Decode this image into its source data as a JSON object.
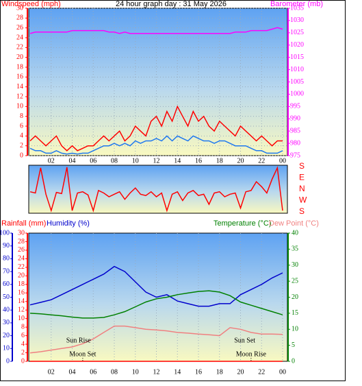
{
  "chart_data": [
    {
      "type": "line",
      "title": "24 hour graph day : 31 May 2026",
      "ylabel": "Windspeed (mph)",
      "y2label": "Barometer (mb)",
      "x": [
        0,
        0.5,
        1,
        1.5,
        2,
        2.5,
        3,
        3.5,
        4,
        4.5,
        5,
        5.5,
        6,
        6.5,
        7,
        7.5,
        8,
        8.5,
        9,
        9.5,
        10,
        10.5,
        11,
        11.5,
        12,
        12.5,
        13,
        13.5,
        14,
        14.5,
        15,
        15.5,
        16,
        16.5,
        17,
        17.5,
        18,
        18.5,
        19,
        19.5,
        20,
        20.5,
        21,
        21.5,
        22,
        22.5,
        23,
        23.5,
        24
      ],
      "xlim": [
        0,
        24
      ],
      "xticks": [
        {
          "value": 2,
          "label": "02"
        },
        {
          "value": 4,
          "label": "04"
        },
        {
          "value": 6,
          "label": "06"
        },
        {
          "value": 8,
          "label": "08"
        },
        10,
        12,
        14,
        16,
        18,
        20,
        22,
        {
          "value": 24,
          "label": "00"
        }
      ],
      "ylim": [
        0,
        30
      ],
      "yticks": [
        0,
        2,
        4,
        6,
        8,
        10,
        12,
        14,
        16,
        18,
        20,
        22,
        24,
        26,
        28,
        30
      ],
      "y2lim": [
        975,
        1035
      ],
      "y2ticks": [
        975,
        980,
        985,
        990,
        995,
        1000,
        1005,
        1010,
        1015,
        1020,
        1025,
        1030,
        1035
      ],
      "grid": true,
      "series": [
        {
          "color": "#ff0000",
          "values": [
            3,
            4,
            3,
            2,
            3,
            4,
            2,
            1,
            2,
            1,
            1.5,
            2,
            2,
            3,
            4,
            3,
            4,
            5,
            3,
            4,
            6,
            5,
            4,
            7,
            8,
            6,
            9,
            7,
            10,
            8,
            6,
            9,
            7,
            8,
            6,
            5,
            7,
            6,
            5,
            4,
            6,
            5,
            4,
            3,
            4,
            3,
            2,
            3,
            3
          ]
        },
        {
          "color": "#1e78f0",
          "values": [
            1.5,
            1,
            1,
            0.5,
            0.5,
            1,
            0.5,
            0.3,
            0.5,
            0.3,
            0.5,
            0.5,
            1,
            1.5,
            2,
            2,
            2.5,
            2,
            2.5,
            2,
            3,
            2.5,
            3,
            3,
            3.5,
            3,
            4,
            3,
            4,
            3.5,
            3,
            4,
            3.5,
            3,
            3,
            2.5,
            3,
            3,
            2.5,
            2,
            2,
            2,
            1.5,
            1,
            1,
            0.5,
            0.5,
            0.5,
            1
          ]
        },
        {
          "color": "#ff00ff",
          "axis": "y2",
          "values": [
            1024.7,
            1025.3,
            1025.3,
            1025.3,
            1025.3,
            1025.3,
            1025.3,
            1025.3,
            1025.9,
            1025.9,
            1025.9,
            1025.9,
            1025.9,
            1025.9,
            1025.9,
            1025.3,
            1025.3,
            1024.7,
            1025.3,
            1024.7,
            1024.7,
            1024.7,
            1024.7,
            1024.7,
            1024.7,
            1024.7,
            1024.7,
            1024.7,
            1024.7,
            1024.7,
            1024.7,
            1024.7,
            1024.7,
            1024.7,
            1024.7,
            1024.7,
            1024.7,
            1024.7,
            1024.7,
            1025.3,
            1025.3,
            1025.3,
            1025.9,
            1025.9,
            1025.9,
            1025.9,
            1026.5,
            1027.1,
            1026.5
          ]
        }
      ]
    },
    {
      "type": "line",
      "x": [
        0,
        0.5,
        1,
        1.5,
        2,
        2.5,
        3,
        3.5,
        4,
        4.5,
        5,
        5.5,
        6,
        6.5,
        7,
        7.5,
        8,
        8.5,
        9,
        9.5,
        10,
        10.5,
        11,
        11.5,
        12,
        12.5,
        13,
        13.5,
        14,
        14.5,
        15,
        15.5,
        16,
        16.5,
        17,
        17.5,
        18,
        18.5,
        19,
        19.5,
        20,
        20.5,
        21,
        21.5,
        22,
        22.5,
        23,
        23.5,
        24
      ],
      "xlim": [
        0,
        24
      ],
      "ylim": [
        -180,
        180
      ],
      "yticks": [
        {
          "value": 180,
          "label": "S"
        },
        {
          "value": 90,
          "label": "E"
        },
        {
          "value": 0,
          "label": "N"
        },
        {
          "value": -90,
          "label": "W"
        },
        {
          "value": -180,
          "label": "S"
        }
      ],
      "series": [
        {
          "color": "#ff0000",
          "values": [
            -20,
            -30,
            170,
            -40,
            -170,
            -25,
            -35,
            175,
            -170,
            -30,
            -20,
            -45,
            -170,
            -10,
            -30,
            -60,
            -40,
            -20,
            -80,
            -30,
            10,
            -40,
            -50,
            -20,
            -60,
            -30,
            -170,
            -40,
            -20,
            -90,
            -30,
            -10,
            -50,
            -40,
            -120,
            -30,
            -20,
            -60,
            -40,
            -30,
            -150,
            -20,
            -10,
            60,
            20,
            -30,
            80,
            170,
            -170
          ]
        }
      ]
    },
    {
      "type": "line",
      "ylabel": "Rainfall (mm)",
      "y3label": "Humidity (%)",
      "y2label": "Temperature (°C)",
      "y2label_b": "Dew Point (°C)",
      "x": [
        0,
        1,
        2,
        3,
        4,
        5,
        6,
        7,
        8,
        9,
        10,
        11,
        12,
        13,
        14,
        15,
        16,
        17,
        18,
        19,
        20,
        21,
        22,
        23,
        24
      ],
      "xlim": [
        0,
        24
      ],
      "xticks": [
        {
          "value": 2,
          "label": "02"
        },
        {
          "value": 4,
          "label": "04"
        },
        {
          "value": 6,
          "label": "06"
        },
        {
          "value": 8,
          "label": "08"
        },
        10,
        12,
        14,
        16,
        18,
        20,
        22,
        {
          "value": 24,
          "label": "00"
        }
      ],
      "ylim": [
        0,
        30
      ],
      "yticks": [
        0,
        2,
        4,
        6,
        8,
        10,
        12,
        14,
        16,
        18,
        20,
        22,
        24,
        26,
        28,
        30
      ],
      "y3lim": [
        0,
        100
      ],
      "y3ticks": [
        0,
        10,
        20,
        30,
        40,
        50,
        60,
        70,
        80,
        90,
        100
      ],
      "y2lim": [
        0,
        40
      ],
      "y2ticks": [
        0,
        5,
        10,
        15,
        20,
        25,
        30,
        35,
        40
      ],
      "grid": true,
      "series": [
        {
          "color": "#0000cc",
          "axis": "y3",
          "values": [
            44,
            46,
            48,
            52,
            56,
            60,
            64,
            68,
            74,
            70,
            62,
            54,
            50,
            52,
            47,
            45,
            43,
            43,
            45,
            45,
            52,
            56,
            60,
            65,
            69
          ]
        },
        {
          "color": "#008000",
          "axis": "y2",
          "values": [
            15,
            14.8,
            14.5,
            14.2,
            13.8,
            13.5,
            13.5,
            13.7,
            14.5,
            15.5,
            17,
            18.5,
            19.5,
            20,
            20.8,
            21.3,
            21.8,
            22,
            21.6,
            20.5,
            18.5,
            17.5,
            16.5,
            15.5,
            14.5
          ]
        },
        {
          "color": "#f08080",
          "axis": "y2",
          "values": [
            2.6,
            3,
            3.5,
            4,
            4.5,
            5.5,
            7,
            9,
            11,
            11,
            10.5,
            10,
            9.8,
            9.5,
            9,
            8.8,
            8.5,
            8.3,
            8,
            10.5,
            10,
            9,
            8.5,
            8.5,
            8.4
          ]
        },
        {
          "color": "#ff0000",
          "values": [
            0,
            0,
            0,
            0,
            0,
            0,
            0,
            0,
            0,
            0,
            0,
            0,
            0,
            0,
            0,
            0,
            0,
            0,
            0,
            0,
            0,
            0,
            0,
            0,
            0
          ]
        }
      ],
      "annotations": [
        {
          "text": "Sun Rise",
          "x": 4.6
        },
        {
          "text": "Sun Set",
          "x": 20.4
        },
        {
          "text": "Moon Set",
          "x": 5
        },
        {
          "text": "Moon Rise",
          "x": 21
        }
      ]
    }
  ]
}
